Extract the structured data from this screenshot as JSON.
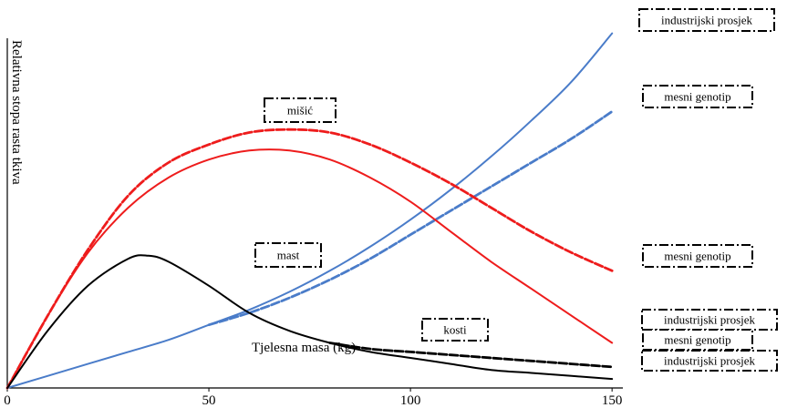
{
  "chart_data": {
    "type": "line",
    "xlabel": "Tjelesna masa  (kg)",
    "ylabel": "Relativna stopa rasta tkiva",
    "xlim": [
      0,
      152
    ],
    "xticks": [
      0,
      50,
      100,
      150
    ],
    "grid": false,
    "legend": "none",
    "series": [
      {
        "name": "industrijski prosjek",
        "tissue": "kosti",
        "style": "solid",
        "color": "#4a7cc9",
        "x": [
          0,
          10,
          20,
          30,
          40,
          50,
          60,
          70,
          80,
          90,
          100,
          110,
          120,
          130,
          140,
          150
        ],
        "y": [
          0,
          4,
          8,
          12,
          16,
          21,
          26,
          32,
          39,
          47,
          56,
          66,
          77,
          89,
          102,
          118
        ]
      },
      {
        "name": "mesni genotip",
        "tissue": "kosti",
        "style": "dashed",
        "color": "#4a7cc9",
        "x": [
          50,
          60,
          70,
          80,
          90,
          100,
          110,
          120,
          130,
          140,
          150
        ],
        "y": [
          21,
          25,
          30,
          36,
          43,
          51,
          59,
          67,
          75,
          83,
          92
        ]
      },
      {
        "name": "mesni genotip",
        "tissue": "mišić",
        "style": "dashed",
        "color": "#ee1c1c",
        "x": [
          0,
          10,
          20,
          30,
          40,
          50,
          60,
          70,
          80,
          90,
          100,
          110,
          120,
          130,
          140,
          150
        ],
        "y": [
          0,
          24,
          46,
          64,
          75,
          81,
          85,
          86,
          85,
          81,
          75,
          68,
          60,
          52,
          45,
          39
        ]
      },
      {
        "name": "industrijski prosjek",
        "tissue": "mišić",
        "style": "solid",
        "color": "#ee1c1c",
        "x": [
          0,
          10,
          20,
          30,
          40,
          50,
          60,
          70,
          80,
          90,
          100,
          110,
          120,
          130,
          140,
          150
        ],
        "y": [
          0,
          24,
          45,
          60,
          70,
          76,
          79,
          79,
          76,
          70,
          62,
          52,
          42,
          33,
          24,
          15
        ]
      },
      {
        "name": "industrijski prosjek",
        "tissue": "mast",
        "style": "solid",
        "color": "#000000",
        "x": [
          0,
          10,
          20,
          30,
          35,
          40,
          50,
          60,
          70,
          80,
          90,
          100,
          110,
          120,
          130,
          140,
          150
        ],
        "y": [
          0,
          19,
          34,
          43,
          44,
          42,
          34,
          25,
          19,
          15,
          12,
          10,
          8,
          6,
          5,
          4,
          3
        ]
      },
      {
        "name": "mesni genotip",
        "tissue": "mast",
        "style": "dashed",
        "color": "#000000",
        "x": [
          80,
          90,
          100,
          110,
          120,
          130,
          140,
          150
        ],
        "y": [
          15,
          13,
          12,
          11,
          10,
          9,
          8,
          7
        ]
      }
    ],
    "annotations": [
      {
        "text": "mišić"
      },
      {
        "text": "mast"
      },
      {
        "text": "kosti"
      },
      {
        "text": "industrijski prosjek"
      },
      {
        "text": "mesni genotip"
      },
      {
        "text": "mesni genotip"
      },
      {
        "text": "industrijski prosjek"
      },
      {
        "text": "mesni genotip"
      },
      {
        "text": "industrijski prosjek"
      }
    ]
  }
}
